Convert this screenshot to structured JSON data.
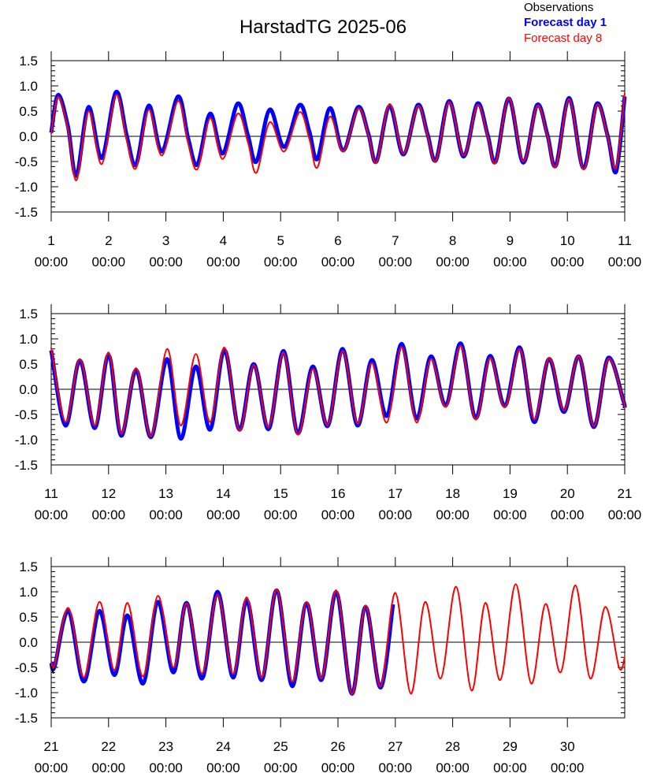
{
  "chart_data": {
    "type": "line",
    "title": "HarstadTG 2025-06",
    "legend": {
      "placement": "top-right",
      "entries": [
        {
          "label": "Observations",
          "color": "#000000",
          "bold": false
        },
        {
          "label": "Forecast day 1",
          "color": "#0000ff",
          "bold": true
        },
        {
          "label": "Forecast day 8",
          "color": "#ff0000",
          "bold": false
        }
      ]
    },
    "series_colors": {
      "observations": "#000000",
      "forecast_day_1": "#0000ff",
      "forecast_day_8": "#ff0000"
    },
    "ylim": [
      -1.5,
      1.5
    ],
    "yticks": [
      "1.5",
      "1.0",
      "0.5",
      "0.0",
      "-0.5",
      "-1.0",
      "-1.5"
    ],
    "ytick_values": [
      1.5,
      1.0,
      0.5,
      0.0,
      -0.5,
      -1.0,
      -1.5
    ],
    "panels": [
      {
        "xlim_days": [
          1,
          11
        ],
        "xtick_days": [
          "1",
          "2",
          "3",
          "4",
          "5",
          "6",
          "7",
          "8",
          "9",
          "10",
          "11"
        ],
        "xtick_time": "00:00",
        "forecast_day_1": {
          "x": [
            1.0,
            1.12,
            1.29,
            1.44,
            1.65,
            1.88,
            2.13,
            2.32,
            2.48,
            2.7,
            2.93,
            3.21,
            3.39,
            3.55,
            3.77,
            3.99,
            4.25,
            4.43,
            4.58,
            4.81,
            5.06,
            5.33,
            5.5,
            5.64,
            5.86,
            6.09,
            6.35,
            6.53,
            6.67,
            6.9,
            7.14,
            7.39,
            7.56,
            7.71,
            7.94,
            8.19,
            8.43,
            8.61,
            8.75,
            8.98,
            9.23,
            9.47,
            9.65,
            9.8,
            10.03,
            10.28,
            10.51,
            10.7,
            10.85,
            11.0
          ],
          "y": [
            0.07,
            0.82,
            0.21,
            -0.78,
            0.58,
            -0.43,
            0.88,
            0.0,
            -0.56,
            0.61,
            -0.3,
            0.79,
            -0.05,
            -0.56,
            0.45,
            -0.34,
            0.65,
            0.02,
            -0.5,
            0.53,
            -0.21,
            0.62,
            0.1,
            -0.45,
            0.56,
            -0.28,
            0.58,
            0.05,
            -0.5,
            0.6,
            -0.36,
            0.62,
            0.05,
            -0.47,
            0.7,
            -0.4,
            0.65,
            0.03,
            -0.5,
            0.75,
            -0.52,
            0.62,
            0.04,
            -0.58,
            0.76,
            -0.63,
            0.64,
            0.02,
            -0.7,
            0.79
          ]
        },
        "forecast_day_8": {
          "x": [
            1.0,
            1.12,
            1.29,
            1.44,
            1.65,
            1.88,
            2.13,
            2.32,
            2.48,
            2.7,
            2.93,
            3.21,
            3.39,
            3.55,
            3.77,
            3.99,
            4.25,
            4.43,
            4.58,
            4.81,
            5.06,
            5.33,
            5.5,
            5.64,
            5.86,
            6.09,
            6.35,
            6.53,
            6.67,
            6.9,
            7.14,
            7.39,
            7.56,
            7.71,
            7.94,
            8.19,
            8.43,
            8.61,
            8.75,
            8.98,
            9.23,
            9.47,
            9.65,
            9.8,
            10.03,
            10.28,
            10.51,
            10.7,
            10.85,
            11.0
          ],
          "y": [
            0.05,
            0.78,
            0.15,
            -0.87,
            0.5,
            -0.55,
            0.82,
            -0.1,
            -0.63,
            0.53,
            -0.38,
            0.7,
            -0.15,
            -0.65,
            0.36,
            -0.45,
            0.45,
            -0.12,
            -0.72,
            0.28,
            -0.3,
            0.48,
            -0.05,
            -0.62,
            0.39,
            -0.3,
            0.55,
            0.03,
            -0.52,
            0.64,
            -0.34,
            0.6,
            0.02,
            -0.48,
            0.68,
            -0.38,
            0.62,
            0.0,
            -0.52,
            0.76,
            -0.5,
            0.6,
            0.02,
            -0.6,
            0.74,
            -0.66,
            0.62,
            0.0,
            -0.62,
            0.86
          ]
        }
      },
      {
        "xlim_days": [
          11,
          21
        ],
        "xtick_days": [
          "11",
          "12",
          "13",
          "14",
          "15",
          "16",
          "17",
          "18",
          "19",
          "20",
          "21"
        ],
        "xtick_time": "00:00",
        "forecast_day_1": {
          "x": [
            11.0,
            11.25,
            11.5,
            11.76,
            12.0,
            12.22,
            12.48,
            12.74,
            13.02,
            13.26,
            13.52,
            13.77,
            14.02,
            14.28,
            14.53,
            14.79,
            15.05,
            15.3,
            15.56,
            15.82,
            16.08,
            16.34,
            16.59,
            16.85,
            17.11,
            17.37,
            17.62,
            17.88,
            18.14,
            18.4,
            18.65,
            18.91,
            19.17,
            19.42,
            19.68,
            19.94,
            20.2,
            20.46,
            20.71,
            20.97,
            21.0
          ],
          "y": [
            0.77,
            -0.72,
            0.57,
            -0.77,
            0.68,
            -0.92,
            0.38,
            -0.95,
            0.6,
            -0.98,
            0.45,
            -0.8,
            0.78,
            -0.8,
            0.5,
            -0.79,
            0.76,
            -0.87,
            0.45,
            -0.73,
            0.8,
            -0.72,
            0.58,
            -0.53,
            0.9,
            -0.58,
            0.65,
            -0.32,
            0.91,
            -0.57,
            0.66,
            -0.33,
            0.83,
            -0.65,
            0.6,
            -0.45,
            0.65,
            -0.75,
            0.62,
            -0.2,
            -0.37
          ]
        },
        "forecast_day_8": {
          "x": [
            11.0,
            11.25,
            11.5,
            11.76,
            12.0,
            12.22,
            12.48,
            12.74,
            13.02,
            13.26,
            13.52,
            13.77,
            14.02,
            14.28,
            14.53,
            14.79,
            15.05,
            15.3,
            15.56,
            15.82,
            16.08,
            16.34,
            16.59,
            16.85,
            17.11,
            17.37,
            17.62,
            17.88,
            18.14,
            18.4,
            18.65,
            18.91,
            19.17,
            19.42,
            19.68,
            19.94,
            20.2,
            20.46,
            20.71,
            20.97,
            21.0
          ],
          "y": [
            0.82,
            -0.65,
            0.6,
            -0.72,
            0.73,
            -0.88,
            0.42,
            -0.93,
            0.8,
            -0.72,
            0.7,
            -0.65,
            0.83,
            -0.82,
            0.48,
            -0.75,
            0.73,
            -0.9,
            0.4,
            -0.71,
            0.76,
            -0.68,
            0.52,
            -0.66,
            0.84,
            -0.66,
            0.6,
            -0.35,
            0.86,
            -0.6,
            0.62,
            -0.36,
            0.8,
            -0.6,
            0.62,
            -0.42,
            0.66,
            -0.73,
            0.6,
            -0.2,
            -0.37
          ]
        }
      },
      {
        "xlim_days": [
          21,
          31
        ],
        "xtick_days": [
          "21",
          "22",
          "23",
          "24",
          "25",
          "26",
          "27",
          "28",
          "29",
          "30"
        ],
        "xtick_time": "00:00",
        "observations": {
          "x": [
            21.0,
            21.04
          ],
          "y": [
            -0.48,
            -0.62
          ]
        },
        "forecast_day_1": {
          "x": [
            21.0,
            21.06,
            21.3,
            21.57,
            21.84,
            22.1,
            22.33,
            22.6,
            22.86,
            23.13,
            23.36,
            23.63,
            23.9,
            24.17,
            24.41,
            24.67,
            24.93,
            25.2,
            25.45,
            25.71,
            25.97,
            26.24,
            26.48,
            26.74,
            26.96
          ],
          "y": [
            -0.4,
            -0.48,
            0.62,
            -0.78,
            0.62,
            -0.65,
            0.53,
            -0.82,
            0.8,
            -0.6,
            0.78,
            -0.72,
            1.0,
            -0.7,
            0.83,
            -0.75,
            1.03,
            -0.87,
            0.77,
            -0.75,
            0.99,
            -1.02,
            0.7,
            -0.9,
            0.75
          ]
        },
        "forecast_day_8": {
          "x": [
            21.0,
            21.06,
            21.3,
            21.57,
            21.84,
            22.1,
            22.33,
            22.6,
            22.86,
            23.13,
            23.36,
            23.63,
            23.9,
            24.17,
            24.41,
            24.67,
            24.93,
            25.2,
            25.45,
            25.71,
            25.97,
            26.24,
            26.48,
            26.74,
            27.0,
            27.27,
            27.52,
            27.79,
            28.06,
            28.33,
            28.57,
            28.83,
            29.1,
            29.37,
            29.62,
            29.88,
            30.14,
            30.4,
            30.66,
            30.9,
            31.0
          ],
          "y": [
            -0.38,
            -0.45,
            0.68,
            -0.7,
            0.8,
            -0.55,
            0.78,
            -0.68,
            0.92,
            -0.5,
            0.77,
            -0.62,
            0.95,
            -0.63,
            0.89,
            -0.7,
            1.05,
            -0.78,
            0.8,
            -0.72,
            1.03,
            -1.03,
            0.73,
            -0.88,
            0.98,
            -1.02,
            0.8,
            -0.72,
            1.1,
            -0.96,
            0.78,
            -0.75,
            1.15,
            -0.82,
            0.76,
            -0.6,
            1.13,
            -0.72,
            0.7,
            -0.5,
            -0.3
          ]
        }
      }
    ]
  }
}
